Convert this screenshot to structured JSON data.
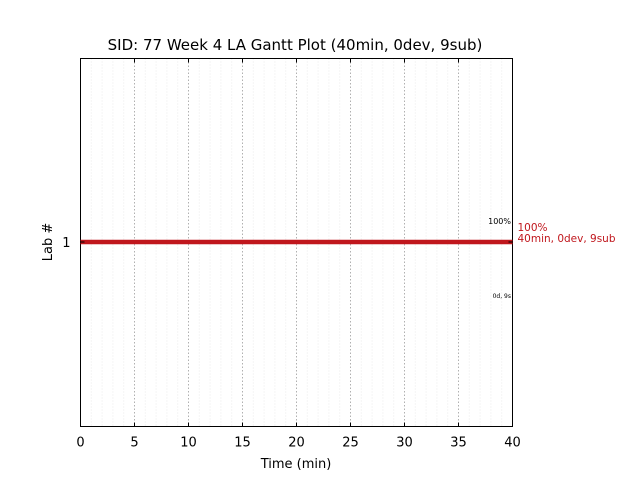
{
  "chart_data": {
    "type": "gantt",
    "title": "SID: 77 Week 4 LA Gantt Plot (40min, 0dev, 9sub)",
    "xlabel": "Time (min)",
    "ylabel": "Lab #",
    "xlim": [
      0,
      40
    ],
    "xticks": [
      "0",
      "5",
      "10",
      "15",
      "20",
      "25",
      "30",
      "35",
      "40"
    ],
    "yticks": [
      "1"
    ],
    "grid": true,
    "bars": [
      {
        "lab": 1,
        "start": 0,
        "end": 40,
        "color": "#c0171d",
        "label_percent": "100%",
        "label_detail": "40min, 0dev, 9sub"
      }
    ],
    "annotations": {
      "small_percent": "100%",
      "small_detail": "0d, 9s"
    }
  }
}
